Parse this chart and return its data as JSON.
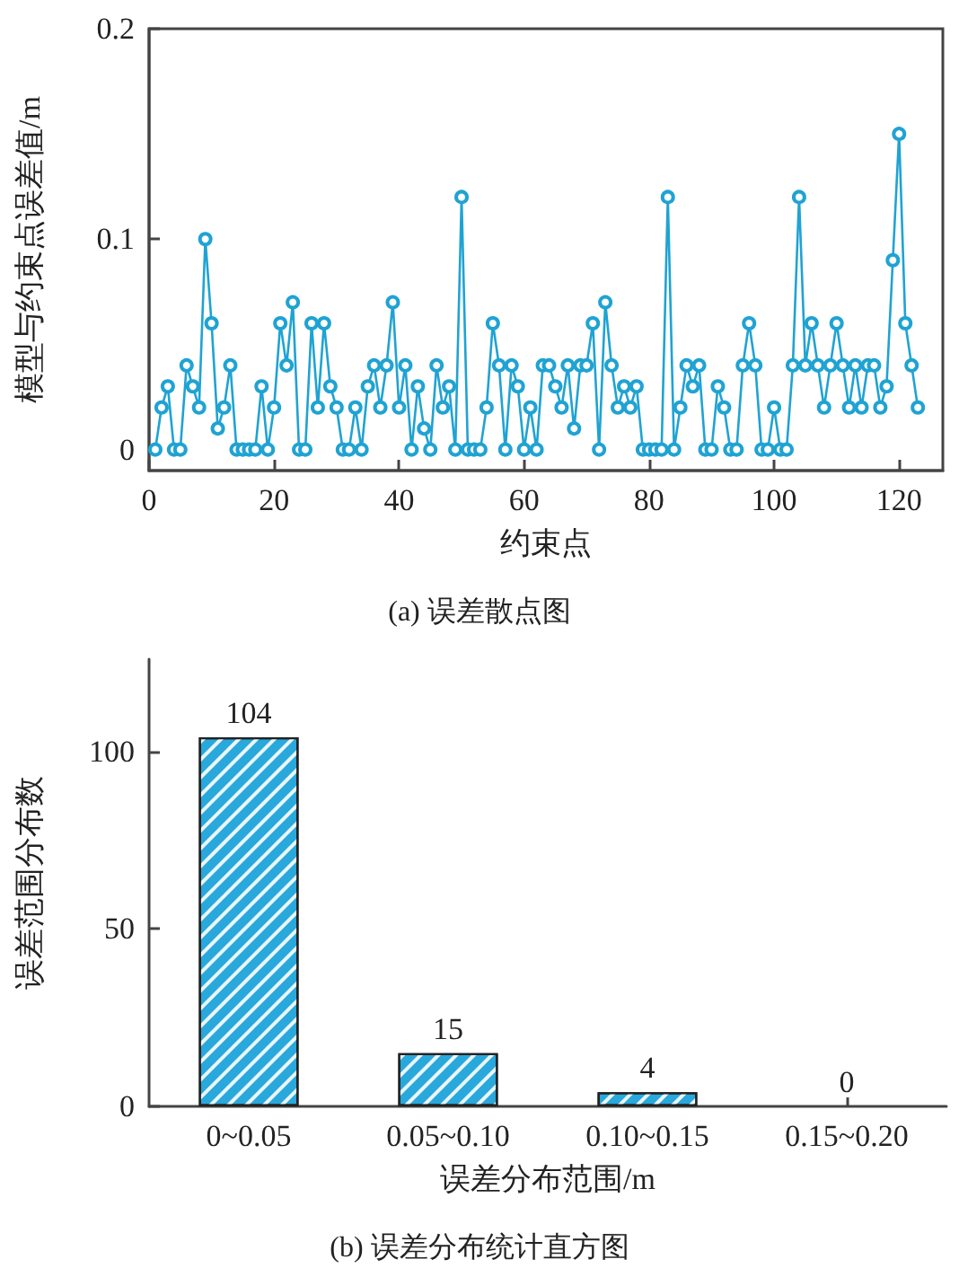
{
  "chart_data": [
    {
      "type": "line",
      "xlabel": "约束点",
      "ylabel": "模型与约束点误差值/m",
      "annotations": [
        "(a) 误差散点图"
      ],
      "x": [
        1,
        2,
        3,
        4,
        5,
        6,
        7,
        8,
        9,
        10,
        11,
        12,
        13,
        14,
        15,
        16,
        17,
        18,
        19,
        20,
        21,
        22,
        23,
        24,
        25,
        26,
        27,
        28,
        29,
        30,
        31,
        32,
        33,
        34,
        35,
        36,
        37,
        38,
        39,
        40,
        41,
        42,
        43,
        44,
        45,
        46,
        47,
        48,
        49,
        50,
        51,
        52,
        53,
        54,
        55,
        56,
        57,
        58,
        59,
        60,
        61,
        62,
        63,
        64,
        65,
        66,
        67,
        68,
        69,
        70,
        71,
        72,
        73,
        74,
        75,
        76,
        77,
        78,
        79,
        80,
        81,
        82,
        83,
        84,
        85,
        86,
        87,
        88,
        89,
        90,
        91,
        92,
        93,
        94,
        95,
        96,
        97,
        98,
        99,
        100,
        101,
        102,
        103,
        104,
        105,
        106,
        107,
        108,
        109,
        110,
        111,
        112,
        113,
        114,
        115,
        116,
        117,
        118,
        119,
        120,
        121,
        122,
        123
      ],
      "series": [
        {
          "color": "#1fa3d3",
          "values": [
            0,
            0.02,
            0.03,
            0,
            0,
            0.04,
            0.03,
            0.02,
            0.1,
            0.06,
            0.01,
            0.02,
            0.04,
            0,
            0,
            0,
            0,
            0.03,
            0,
            0.02,
            0.06,
            0.04,
            0.07,
            0,
            0,
            0.06,
            0.02,
            0.06,
            0.03,
            0.02,
            0,
            0,
            0.02,
            0,
            0.03,
            0.04,
            0.02,
            0.04,
            0.07,
            0.02,
            0.04,
            0,
            0.03,
            0.01,
            0,
            0.04,
            0.02,
            0.03,
            0,
            0.12,
            0,
            0,
            0,
            0.02,
            0.06,
            0.04,
            0,
            0.04,
            0.03,
            0,
            0.02,
            0,
            0.04,
            0.04,
            0.03,
            0.02,
            0.04,
            0.01,
            0.04,
            0.04,
            0.06,
            0,
            0.07,
            0.04,
            0.02,
            0.03,
            0.02,
            0.03,
            0,
            0,
            0,
            0,
            0.12,
            0,
            0.02,
            0.04,
            0.03,
            0.04,
            0,
            0,
            0.03,
            0.02,
            0,
            0,
            0.04,
            0.06,
            0.04,
            0,
            0,
            0.02,
            0,
            0,
            0.04,
            0.12,
            0.04,
            0.06,
            0.04,
            0.02,
            0.04,
            0.06,
            0.04,
            0.02,
            0.04,
            0.02,
            0.04,
            0.04,
            0.02,
            0.03,
            0.09,
            0.15,
            0.06,
            0.04,
            0.02
          ]
        }
      ],
      "xlim": [
        0,
        127
      ],
      "xticks": [
        0,
        20,
        40,
        60,
        80,
        100,
        120
      ],
      "ylim": [
        -0.01,
        0.2
      ],
      "yticks": [
        0,
        0.1,
        0.2
      ],
      "marker": "circle",
      "line_style": "solid",
      "grid": false
    },
    {
      "type": "bar",
      "xlabel": "误差分布范围/m",
      "ylabel": "误差范围分布数",
      "annotations": [
        "(b) 误差分布统计直方图"
      ],
      "categories": [
        "0~0.05",
        "0.05~0.10",
        "0.10~0.15",
        "0.15~0.20"
      ],
      "values": [
        104,
        15,
        4,
        0
      ],
      "color": "#29a8dc",
      "data_labels": true,
      "ylim": [
        0,
        126
      ],
      "yticks": [
        0,
        50,
        100
      ],
      "grid": false
    }
  ]
}
